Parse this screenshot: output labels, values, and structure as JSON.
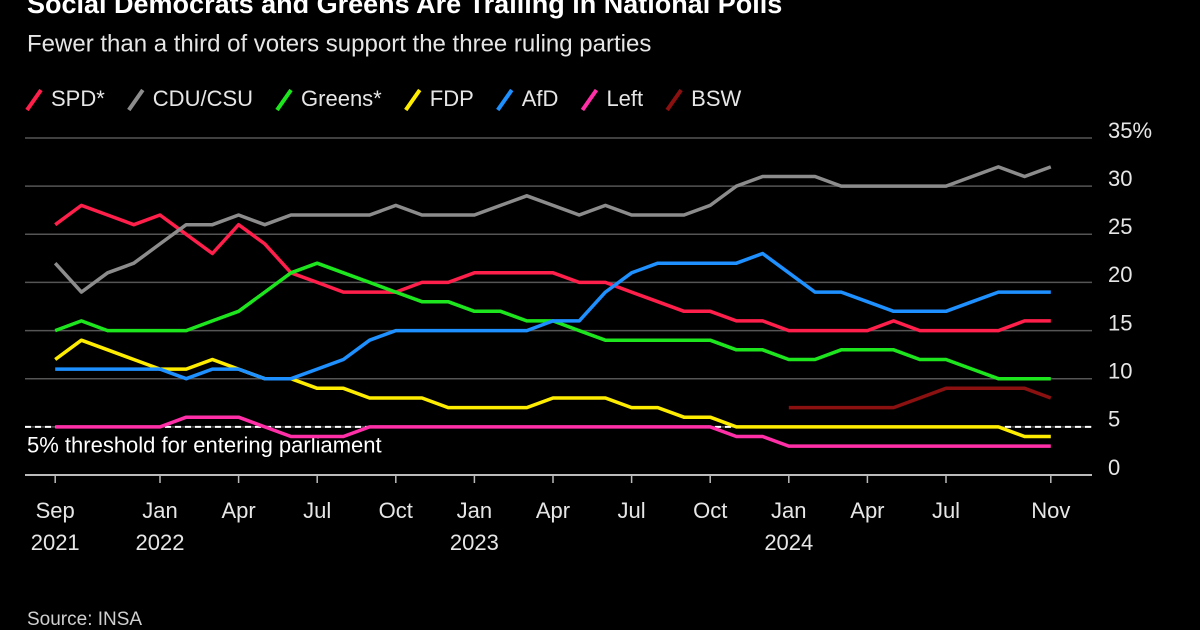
{
  "chart_data": {
    "type": "line",
    "title": "Social Democrats and Greens Are Trailing in National Polls",
    "subtitle": "Fewer than a third of voters support the three ruling parties",
    "source": "Source: INSA",
    "x": [
      "2021-09",
      "2021-10",
      "2021-11",
      "2021-12",
      "2022-01",
      "2022-02",
      "2022-03",
      "2022-04",
      "2022-05",
      "2022-06",
      "2022-07",
      "2022-08",
      "2022-09",
      "2022-10",
      "2022-11",
      "2022-12",
      "2023-01",
      "2023-02",
      "2023-03",
      "2023-04",
      "2023-05",
      "2023-06",
      "2023-07",
      "2023-08",
      "2023-09",
      "2023-10",
      "2023-11",
      "2023-12",
      "2024-01",
      "2024-02",
      "2024-03",
      "2024-04",
      "2024-05",
      "2024-06",
      "2024-07",
      "2024-08",
      "2024-09",
      "2024-10",
      "2024-11"
    ],
    "xlim": [
      "2021-08",
      "2024-12"
    ],
    "xticks": [
      {
        "value": "2021-09",
        "label": "Sep 2021"
      },
      {
        "value": "2022-01",
        "label": "Jan 2022"
      },
      {
        "value": "2022-04",
        "label": "Apr"
      },
      {
        "value": "2022-07",
        "label": "Jul"
      },
      {
        "value": "2022-10",
        "label": "Oct"
      },
      {
        "value": "2023-01",
        "label": "Jan 2023"
      },
      {
        "value": "2023-04",
        "label": "Apr"
      },
      {
        "value": "2023-07",
        "label": "Jul"
      },
      {
        "value": "2023-10",
        "label": "Oct"
      },
      {
        "value": "2024-01",
        "label": "Jan 2024"
      },
      {
        "value": "2024-04",
        "label": "Apr"
      },
      {
        "value": "2024-07",
        "label": "Jul"
      },
      {
        "value": "2024-11",
        "label": "Nov"
      }
    ],
    "ylim": [
      0,
      35
    ],
    "yticks": [
      0,
      5,
      10,
      15,
      20,
      25,
      30,
      {
        "value": 35,
        "label": "35%"
      }
    ],
    "grid": true,
    "legend": "top-left",
    "threshold": {
      "value": 5,
      "label": "5% threshold for entering parliament"
    },
    "series": [
      {
        "name": "SPD*",
        "color": "#ff1f4b",
        "values": [
          26,
          28,
          27,
          26,
          27,
          25,
          23,
          26,
          24,
          21,
          20,
          19,
          19,
          19,
          20,
          20,
          21,
          21,
          21,
          21,
          20,
          20,
          19,
          18,
          17,
          17,
          16,
          16,
          15,
          15,
          15,
          15,
          16,
          15,
          15,
          15,
          15,
          16,
          16
        ]
      },
      {
        "name": "CDU/CSU",
        "color": "#8c8c8c",
        "values": [
          22,
          19,
          21,
          22,
          24,
          26,
          26,
          27,
          26,
          27,
          27,
          27,
          27,
          28,
          27,
          27,
          27,
          28,
          29,
          28,
          27,
          28,
          27,
          27,
          27,
          28,
          30,
          31,
          31,
          31,
          30,
          30,
          30,
          30,
          30,
          31,
          32,
          31,
          32
        ]
      },
      {
        "name": "Greens*",
        "color": "#1ee61e",
        "values": [
          15,
          16,
          15,
          15,
          15,
          15,
          16,
          17,
          19,
          21,
          22,
          21,
          20,
          19,
          18,
          18,
          17,
          17,
          16,
          16,
          15,
          14,
          14,
          14,
          14,
          14,
          13,
          13,
          12,
          12,
          13,
          13,
          13,
          12,
          12,
          11,
          10,
          10,
          10
        ]
      },
      {
        "name": "FDP",
        "color": "#ffed00",
        "values": [
          12,
          14,
          13,
          12,
          11,
          11,
          12,
          11,
          10,
          10,
          9,
          9,
          8,
          8,
          8,
          7,
          7,
          7,
          7,
          8,
          8,
          8,
          7,
          7,
          6,
          6,
          5,
          5,
          5,
          5,
          5,
          5,
          5,
          5,
          5,
          5,
          5,
          4,
          4
        ]
      },
      {
        "name": "AfD",
        "color": "#1e90ff",
        "values": [
          11,
          11,
          11,
          11,
          11,
          10,
          11,
          11,
          10,
          10,
          11,
          12,
          14,
          15,
          15,
          15,
          15,
          15,
          15,
          16,
          16,
          19,
          21,
          22,
          22,
          22,
          22,
          23,
          21,
          19,
          19,
          18,
          17,
          17,
          17,
          18,
          19,
          19,
          19
        ]
      },
      {
        "name": "Left",
        "color": "#ff2fa8",
        "values": [
          5,
          5,
          5,
          5,
          5,
          6,
          6,
          6,
          5,
          4,
          4,
          4,
          5,
          5,
          5,
          5,
          5,
          5,
          5,
          5,
          5,
          5,
          5,
          5,
          5,
          5,
          4,
          4,
          3,
          3,
          3,
          3,
          3,
          3,
          3,
          3,
          3,
          3,
          3
        ]
      },
      {
        "name": "BSW",
        "color": "#8b1010",
        "values": [
          null,
          null,
          null,
          null,
          null,
          null,
          null,
          null,
          null,
          null,
          null,
          null,
          null,
          null,
          null,
          null,
          null,
          null,
          null,
          null,
          null,
          null,
          null,
          null,
          null,
          null,
          null,
          null,
          7,
          7,
          7,
          7,
          7,
          8,
          9,
          9,
          9,
          9,
          8
        ]
      }
    ]
  }
}
